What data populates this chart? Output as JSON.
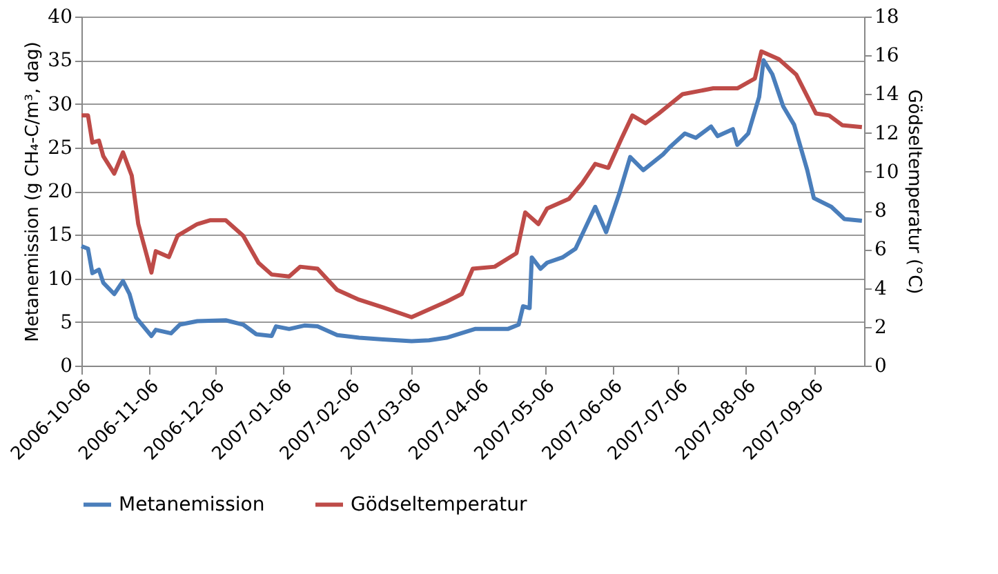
{
  "chart_data": {
    "type": "line",
    "ylabel": "Metanemission (g CH₄-C/m³, dag)",
    "y2label": "Gödseltemperatur (°C)",
    "xlim": [
      "2006-10-06",
      "2007-09-29"
    ],
    "xticks": [
      "2006-10-06",
      "2006-11-06",
      "2006-12-06",
      "2007-01-06",
      "2007-02-06",
      "2007-03-06",
      "2007-04-06",
      "2007-05-06",
      "2007-06-06",
      "2007-07-06",
      "2007-08-06",
      "2007-09-06"
    ],
    "ylim": [
      0,
      40
    ],
    "yticks": [
      0,
      5,
      10,
      15,
      20,
      25,
      30,
      35,
      40
    ],
    "y2lim": [
      0,
      18
    ],
    "y2ticks": [
      0,
      2,
      4,
      6,
      8,
      10,
      12,
      14,
      16,
      18
    ],
    "grid": "y",
    "legend": "bottom",
    "line_style": "solid",
    "marker": "none",
    "series": [
      {
        "name": "Metanemission",
        "color": "#4a7ebb",
        "x": [
          "2006-10-06",
          "2006-10-09",
          "2006-10-11",
          "2006-10-14",
          "2006-10-16",
          "2006-10-21",
          "2006-10-25",
          "2006-10-28",
          "2006-10-31",
          "2006-11-07",
          "2006-11-09",
          "2006-11-16",
          "2006-11-20",
          "2006-11-28",
          "2006-12-11",
          "2006-12-19",
          "2006-12-25",
          "2007-01-01",
          "2007-01-03",
          "2007-01-09",
          "2007-01-16",
          "2007-01-22",
          "2007-01-31",
          "2007-02-10",
          "2007-02-21",
          "2007-03-06",
          "2007-03-14",
          "2007-03-22",
          "2007-04-04",
          "2007-04-19",
          "2007-04-24",
          "2007-04-26",
          "2007-04-29",
          "2007-04-30",
          "2007-05-04",
          "2007-05-07",
          "2007-05-14",
          "2007-05-20",
          "2007-05-29",
          "2007-06-03",
          "2007-06-09",
          "2007-06-14",
          "2007-06-20",
          "2007-06-29",
          "2007-07-02",
          "2007-07-09",
          "2007-07-14",
          "2007-07-21",
          "2007-07-24",
          "2007-07-31",
          "2007-08-02",
          "2007-08-07",
          "2007-08-12",
          "2007-08-14",
          "2007-08-18",
          "2007-08-23",
          "2007-08-28",
          "2007-09-03",
          "2007-09-06",
          "2007-09-14",
          "2007-09-20",
          "2007-09-28"
        ],
        "values": [
          13.7,
          13.4,
          10.6,
          11.0,
          9.5,
          8.2,
          9.7,
          8.2,
          5.5,
          3.4,
          4.1,
          3.7,
          4.7,
          5.1,
          5.2,
          4.7,
          3.6,
          3.4,
          4.5,
          4.2,
          4.6,
          4.5,
          3.5,
          3.2,
          3.0,
          2.8,
          2.9,
          3.2,
          4.2,
          4.2,
          4.7,
          6.8,
          6.6,
          12.4,
          11.1,
          11.8,
          12.4,
          13.4,
          18.2,
          15.3,
          19.7,
          23.9,
          22.4,
          24.2,
          25.0,
          26.6,
          26.1,
          27.4,
          26.3,
          27.1,
          25.3,
          26.6,
          30.8,
          35.0,
          33.4,
          29.7,
          27.6,
          22.4,
          19.2,
          18.2,
          16.8,
          16.6
        ]
      },
      {
        "name": "Gödseltemperatur",
        "color": "#be4b48",
        "axis": "y2",
        "x": [
          "2006-10-06",
          "2006-10-09",
          "2006-10-11",
          "2006-10-14",
          "2006-10-16",
          "2006-10-21",
          "2006-10-25",
          "2006-10-29",
          "2006-11-01",
          "2006-11-07",
          "2006-11-09",
          "2006-11-15",
          "2006-11-19",
          "2006-11-28",
          "2006-12-04",
          "2006-12-11",
          "2006-12-19",
          "2006-12-26",
          "2007-01-01",
          "2007-01-09",
          "2007-01-14",
          "2007-01-22",
          "2007-01-31",
          "2007-02-10",
          "2007-02-21",
          "2007-03-06",
          "2007-03-14",
          "2007-03-22",
          "2007-03-29",
          "2007-04-03",
          "2007-04-13",
          "2007-04-23",
          "2007-04-27",
          "2007-05-03",
          "2007-05-07",
          "2007-05-17",
          "2007-05-23",
          "2007-05-29",
          "2007-06-04",
          "2007-06-10",
          "2007-06-15",
          "2007-06-21",
          "2007-06-27",
          "2007-07-08",
          "2007-07-22",
          "2007-08-02",
          "2007-08-10",
          "2007-08-13",
          "2007-08-21",
          "2007-08-29",
          "2007-09-07",
          "2007-09-13",
          "2007-09-19",
          "2007-09-28"
        ],
        "values": [
          12.9,
          12.9,
          11.5,
          11.6,
          10.8,
          9.9,
          11.0,
          9.8,
          7.3,
          4.8,
          5.9,
          5.6,
          6.7,
          7.3,
          7.5,
          7.5,
          6.7,
          5.3,
          4.7,
          4.6,
          5.1,
          5.0,
          3.9,
          3.4,
          3.0,
          2.5,
          2.9,
          3.3,
          3.7,
          5.0,
          5.1,
          5.8,
          7.9,
          7.3,
          8.1,
          8.6,
          9.4,
          10.4,
          10.2,
          11.7,
          12.9,
          12.5,
          13.0,
          14.0,
          14.3,
          14.3,
          14.8,
          16.2,
          15.8,
          15.0,
          13.0,
          12.9,
          12.4,
          12.3
        ]
      }
    ]
  }
}
